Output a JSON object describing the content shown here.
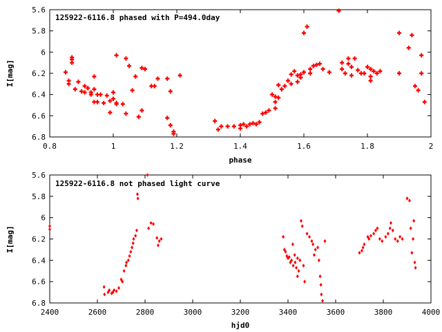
{
  "chart_data": [
    {
      "type": "scatter",
      "title": "125922-6116.8 phased with P=494.0day",
      "xlabel": "phase",
      "ylabel": "I[mag]",
      "xlim": [
        0.8,
        2.0
      ],
      "ylim": [
        6.8,
        5.6
      ],
      "y_inverted": true,
      "xticks": [
        "0.8",
        "1",
        "1.2",
        "1.4",
        "1.6",
        "1.8",
        "2"
      ],
      "yticks": [
        "5.6",
        "5.8",
        "6",
        "6.2",
        "6.4",
        "6.6",
        "6.8"
      ],
      "grid": false,
      "marker_color": "#ff0000",
      "series": [
        {
          "points": [
            [
              0.85,
              6.19
            ],
            [
              0.86,
              6.3
            ],
            [
              0.86,
              6.27
            ],
            [
              0.87,
              6.1
            ],
            [
              0.87,
              6.07
            ],
            [
              0.87,
              6.05
            ],
            [
              0.88,
              6.35
            ],
            [
              0.89,
              6.28
            ],
            [
              0.9,
              6.37
            ],
            [
              0.91,
              6.38
            ],
            [
              0.91,
              6.32
            ],
            [
              0.92,
              6.34
            ],
            [
              0.93,
              6.38
            ],
            [
              0.93,
              6.4
            ],
            [
              0.94,
              6.35
            ],
            [
              0.94,
              6.47
            ],
            [
              0.94,
              6.23
            ],
            [
              0.95,
              6.4
            ],
            [
              0.95,
              6.47
            ],
            [
              0.96,
              6.4
            ],
            [
              0.97,
              6.48
            ],
            [
              0.98,
              6.41
            ],
            [
              0.99,
              6.46
            ],
            [
              0.99,
              6.57
            ],
            [
              1.0,
              6.38
            ],
            [
              1.0,
              6.44
            ],
            [
              1.01,
              6.48
            ],
            [
              1.01,
              6.49
            ],
            [
              1.01,
              6.03
            ],
            [
              1.03,
              6.49
            ],
            [
              1.04,
              6.58
            ],
            [
              1.04,
              6.06
            ],
            [
              1.05,
              6.13
            ],
            [
              1.06,
              6.36
            ],
            [
              1.07,
              6.23
            ],
            [
              1.08,
              6.61
            ],
            [
              1.09,
              6.55
            ],
            [
              1.09,
              6.15
            ],
            [
              1.1,
              6.16
            ],
            [
              1.12,
              6.32
            ],
            [
              1.13,
              6.32
            ],
            [
              1.14,
              6.25
            ],
            [
              1.17,
              6.62
            ],
            [
              1.17,
              6.25
            ],
            [
              1.18,
              6.37
            ],
            [
              1.18,
              6.69
            ],
            [
              1.19,
              6.77
            ],
            [
              1.19,
              6.75
            ],
            [
              1.21,
              6.22
            ],
            [
              1.32,
              6.65
            ],
            [
              1.34,
              6.7
            ],
            [
              1.33,
              6.73
            ],
            [
              1.36,
              6.7
            ],
            [
              1.38,
              6.7
            ],
            [
              1.4,
              6.69
            ],
            [
              1.4,
              6.72
            ],
            [
              1.41,
              6.68
            ],
            [
              1.42,
              6.7
            ],
            [
              1.43,
              6.68
            ],
            [
              1.44,
              6.67
            ],
            [
              1.45,
              6.68
            ],
            [
              1.46,
              6.66
            ],
            [
              1.47,
              6.58
            ],
            [
              1.48,
              6.57
            ],
            [
              1.49,
              6.55
            ],
            [
              1.5,
              6.4
            ],
            [
              1.51,
              6.42
            ],
            [
              1.51,
              6.47
            ],
            [
              1.51,
              6.53
            ],
            [
              1.52,
              6.31
            ],
            [
              1.52,
              6.43
            ],
            [
              1.53,
              6.35
            ],
            [
              1.54,
              6.32
            ],
            [
              1.55,
              6.27
            ],
            [
              1.56,
              6.21
            ],
            [
              1.56,
              6.3
            ],
            [
              1.57,
              6.18
            ],
            [
              1.58,
              6.22
            ],
            [
              1.58,
              6.28
            ],
            [
              1.59,
              6.21
            ],
            [
              1.59,
              6.24
            ],
            [
              1.6,
              5.82
            ],
            [
              1.6,
              6.19
            ],
            [
              1.61,
              5.76
            ],
            [
              1.62,
              6.2
            ],
            [
              1.62,
              6.16
            ],
            [
              1.63,
              6.13
            ],
            [
              1.64,
              6.12
            ],
            [
              1.65,
              6.11
            ],
            [
              1.66,
              6.16
            ],
            [
              1.68,
              6.19
            ],
            [
              1.72,
              6.1
            ],
            [
              1.72,
              6.16
            ],
            [
              1.73,
              6.2
            ],
            [
              1.74,
              6.06
            ],
            [
              1.74,
              6.11
            ],
            [
              1.75,
              6.14
            ],
            [
              1.75,
              6.22
            ],
            [
              1.76,
              6.06
            ],
            [
              1.77,
              6.17
            ],
            [
              1.78,
              6.2
            ],
            [
              1.79,
              6.2
            ],
            [
              1.8,
              6.14
            ],
            [
              1.81,
              6.16
            ],
            [
              1.81,
              6.23
            ],
            [
              1.81,
              6.27
            ],
            [
              1.82,
              6.18
            ],
            [
              1.83,
              6.2
            ],
            [
              1.84,
              6.18
            ],
            [
              1.71,
              5.61
            ],
            [
              1.9,
              6.2
            ],
            [
              1.9,
              5.82
            ],
            [
              1.93,
              5.96
            ],
            [
              1.94,
              5.84
            ],
            [
              1.95,
              6.32
            ],
            [
              1.96,
              6.36
            ],
            [
              1.97,
              6.2
            ],
            [
              1.97,
              6.03
            ],
            [
              1.98,
              6.47
            ]
          ]
        }
      ]
    },
    {
      "type": "scatter",
      "title": "125922-6116.8 not phased light curve",
      "xlabel": "hjd0",
      "ylabel": "I[mag]",
      "xlim": [
        2400,
        4000
      ],
      "ylim": [
        6.8,
        5.6
      ],
      "y_inverted": true,
      "xticks": [
        "2400",
        "2600",
        "2800",
        "3000",
        "3200",
        "3400",
        "3600",
        "3800",
        "4000"
      ],
      "yticks": [
        "5.6",
        "5.8",
        "6",
        "6.2",
        "6.4",
        "6.6",
        "6.8"
      ],
      "grid": false,
      "marker_color": "#ff0000",
      "series": [
        {
          "points": [
            [
              2400,
              6.08
            ],
            [
              2400,
              6.11
            ],
            [
              2628,
              6.65
            ],
            [
              2630,
              6.72
            ],
            [
              2645,
              6.7
            ],
            [
              2650,
              6.68
            ],
            [
              2660,
              6.71
            ],
            [
              2665,
              6.7
            ],
            [
              2670,
              6.68
            ],
            [
              2680,
              6.69
            ],
            [
              2690,
              6.66
            ],
            [
              2700,
              6.58
            ],
            [
              2705,
              6.6
            ],
            [
              2712,
              6.5
            ],
            [
              2720,
              6.45
            ],
            [
              2722,
              6.42
            ],
            [
              2730,
              6.4
            ],
            [
              2735,
              6.36
            ],
            [
              2740,
              6.32
            ],
            [
              2745,
              6.28
            ],
            [
              2750,
              6.24
            ],
            [
              2752,
              6.2
            ],
            [
              2760,
              6.17
            ],
            [
              2765,
              6.12
            ],
            [
              2770,
              5.82
            ],
            [
              2768,
              5.78
            ],
            [
              2810,
              5.6
            ],
            [
              2815,
              6.1
            ],
            [
              2825,
              6.05
            ],
            [
              2835,
              6.06
            ],
            [
              2850,
              6.19
            ],
            [
              2855,
              6.26
            ],
            [
              2860,
              6.22
            ],
            [
              2868,
              6.2
            ],
            [
              3380,
              6.18
            ],
            [
              3385,
              6.3
            ],
            [
              3390,
              6.32
            ],
            [
              3395,
              6.36
            ],
            [
              3400,
              6.38
            ],
            [
              3405,
              6.37
            ],
            [
              3410,
              6.42
            ],
            [
              3415,
              6.4
            ],
            [
              3420,
              6.25
            ],
            [
              3422,
              6.45
            ],
            [
              3428,
              6.35
            ],
            [
              3430,
              6.42
            ],
            [
              3435,
              6.47
            ],
            [
              3440,
              6.38
            ],
            [
              3440,
              6.55
            ],
            [
              3445,
              6.5
            ],
            [
              3450,
              6.4
            ],
            [
              3455,
              6.03
            ],
            [
              3460,
              6.08
            ],
            [
              3465,
              6.45
            ],
            [
              3470,
              6.6
            ],
            [
              3480,
              6.15
            ],
            [
              3490,
              6.18
            ],
            [
              3500,
              6.22
            ],
            [
              3505,
              6.25
            ],
            [
              3510,
              6.35
            ],
            [
              3515,
              6.3
            ],
            [
              3525,
              6.28
            ],
            [
              3530,
              6.4
            ],
            [
              3535,
              6.55
            ],
            [
              3538,
              6.63
            ],
            [
              3540,
              6.72
            ],
            [
              3545,
              6.78
            ],
            [
              3555,
              6.22
            ],
            [
              3700,
              6.33
            ],
            [
              3710,
              6.31
            ],
            [
              3715,
              6.28
            ],
            [
              3720,
              6.25
            ],
            [
              3735,
              6.18
            ],
            [
              3740,
              6.2
            ],
            [
              3748,
              6.17
            ],
            [
              3760,
              6.15
            ],
            [
              3768,
              6.12
            ],
            [
              3775,
              6.1
            ],
            [
              3785,
              6.2
            ],
            [
              3795,
              6.22
            ],
            [
              3810,
              6.18
            ],
            [
              3820,
              6.15
            ],
            [
              3828,
              6.1
            ],
            [
              3832,
              6.05
            ],
            [
              3840,
              6.12
            ],
            [
              3850,
              6.2
            ],
            [
              3860,
              6.22
            ],
            [
              3870,
              6.18
            ],
            [
              3880,
              6.2
            ],
            [
              3900,
              5.82
            ],
            [
              3910,
              5.84
            ],
            [
              3915,
              6.1
            ],
            [
              3920,
              6.33
            ],
            [
              3925,
              6.2
            ],
            [
              3928,
              6.03
            ],
            [
              3932,
              6.42
            ],
            [
              3935,
              6.47
            ]
          ]
        }
      ]
    }
  ]
}
